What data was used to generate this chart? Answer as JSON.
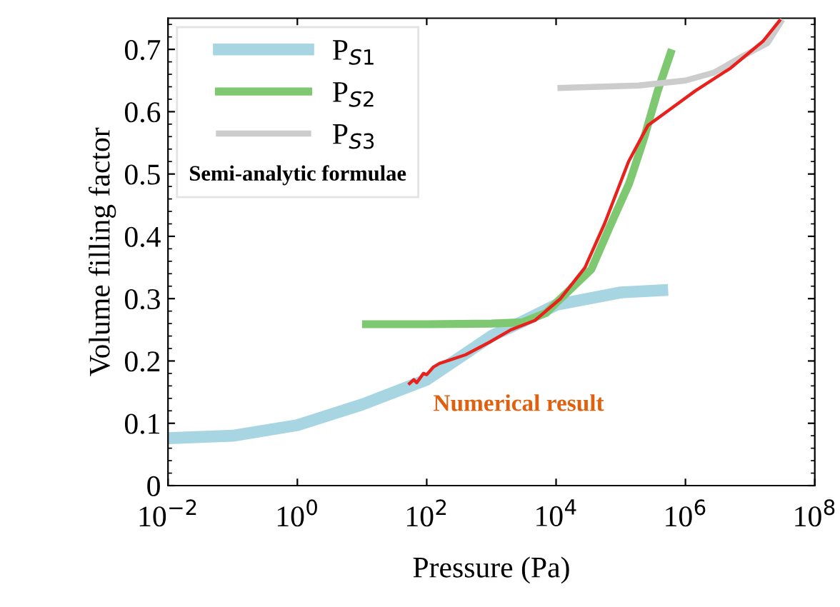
{
  "chart_data": {
    "type": "line",
    "xlabel": "Pressure (Pa)",
    "ylabel": "Volume filling factor",
    "log": "x",
    "xlim": [
      0.01,
      100000000
    ],
    "ylim": [
      0,
      0.75
    ],
    "xticks": [
      {
        "value": 0.01,
        "label": "10$^{−2}$"
      },
      {
        "value": 1,
        "label": "10$^{0}$"
      },
      {
        "value": 100,
        "label": "10$^{2}$"
      },
      {
        "value": 10000,
        "label": "10$^{4}$"
      },
      {
        "value": 1000000,
        "label": "10$^{6}$"
      },
      {
        "value": 100000000,
        "label": "10$^{8}$"
      }
    ],
    "yticks": [
      0,
      0.1,
      0.2,
      0.3,
      0.4,
      0.5,
      0.6,
      0.7
    ],
    "legend": "top left",
    "legend_title": "Semi-analytic formulae",
    "grid": false,
    "series": [
      {
        "name": "P$_{S1}$",
        "color": "#a8d5e2",
        "x": [
          0.01,
          0.1,
          1,
          10,
          100,
          1000,
          3000,
          10000,
          100000,
          540000
        ],
        "values": [
          0.076,
          0.08,
          0.097,
          0.13,
          0.17,
          0.24,
          0.263,
          0.29,
          0.31,
          0.314
        ]
      },
      {
        "name": "P$_{S2}$",
        "color": "#7dc870",
        "x": [
          10,
          100,
          1000,
          3000,
          7000,
          10000,
          35000,
          68000,
          135000,
          224000,
          372000,
          617000
        ],
        "values": [
          0.259,
          0.259,
          0.26,
          0.262,
          0.277,
          0.293,
          0.347,
          0.416,
          0.485,
          0.554,
          0.633,
          0.7
        ]
      },
      {
        "name": "P$_{S3}$",
        "color": "#cccccc",
        "x": [
          10500,
          190000,
          1000000,
          2800000,
          8000000,
          18600000,
          31600000
        ],
        "values": [
          0.638,
          0.642,
          0.65,
          0.663,
          0.69,
          0.71,
          0.748
        ]
      },
      {
        "color": "#e8211d",
        "x": [
          52,
          63,
          70,
          89,
          100,
          126,
          158,
          400,
          930,
          2000,
          4700,
          11700,
          28000,
          56000,
          132000,
          263000,
          600000,
          1400000,
          5000000,
          15800000,
          29500000
        ],
        "values": [
          0.162,
          0.17,
          0.165,
          0.18,
          0.178,
          0.19,
          0.196,
          0.21,
          0.23,
          0.25,
          0.265,
          0.3,
          0.35,
          0.42,
          0.52,
          0.578,
          0.605,
          0.633,
          0.67,
          0.713,
          0.748
        ]
      }
    ],
    "annotations": [
      "Numerical result"
    ]
  }
}
